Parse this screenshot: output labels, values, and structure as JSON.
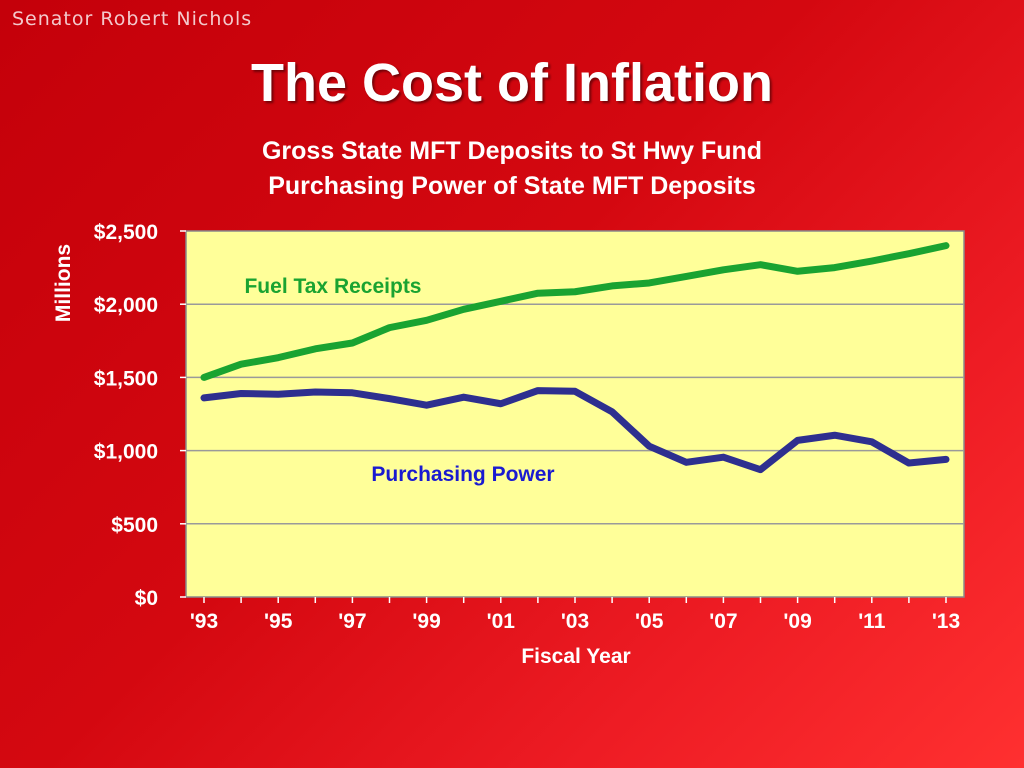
{
  "header": {
    "presenter": "Senator Robert Nichols",
    "title": "The Cost of Inflation"
  },
  "chart_data": {
    "type": "line",
    "titles": [
      "Gross State MFT Deposits to St Hwy Fund",
      "Purchasing Power of State MFT Deposits"
    ],
    "xlabel": "Fiscal Year",
    "ylabel": "Millions",
    "x": [
      1993,
      1994,
      1995,
      1996,
      1997,
      1998,
      1999,
      2000,
      2001,
      2002,
      2003,
      2004,
      2005,
      2006,
      2007,
      2008,
      2009,
      2010,
      2011,
      2012,
      2013
    ],
    "x_tick_labels": [
      "'93",
      "'95",
      "'97",
      "'99",
      "'01",
      "'03",
      "'05",
      "'07",
      "'09",
      "'11",
      "'13"
    ],
    "y_tick_labels": [
      "$0",
      "$500",
      "$1,000",
      "$1,500",
      "$2,000",
      "$2,500"
    ],
    "ylim": [
      0,
      2500
    ],
    "grid": "horizontal",
    "series": [
      {
        "name": "Fuel Tax Receipts",
        "color": "#1aa331",
        "values": [
          1500,
          1590,
          1635,
          1695,
          1735,
          1840,
          1890,
          1965,
          2020,
          2075,
          2085,
          2125,
          2145,
          2190,
          2235,
          2270,
          2225,
          2250,
          2295,
          2345,
          2400
        ]
      },
      {
        "name": "Purchasing Power",
        "color": "#2e2f8f",
        "label_color": "#1a1ad0",
        "values": [
          1360,
          1390,
          1385,
          1400,
          1395,
          1355,
          1310,
          1365,
          1320,
          1410,
          1405,
          1265,
          1030,
          920,
          955,
          870,
          1070,
          1105,
          1060,
          915,
          940
        ]
      }
    ],
    "plot_background": "#ffff99"
  }
}
